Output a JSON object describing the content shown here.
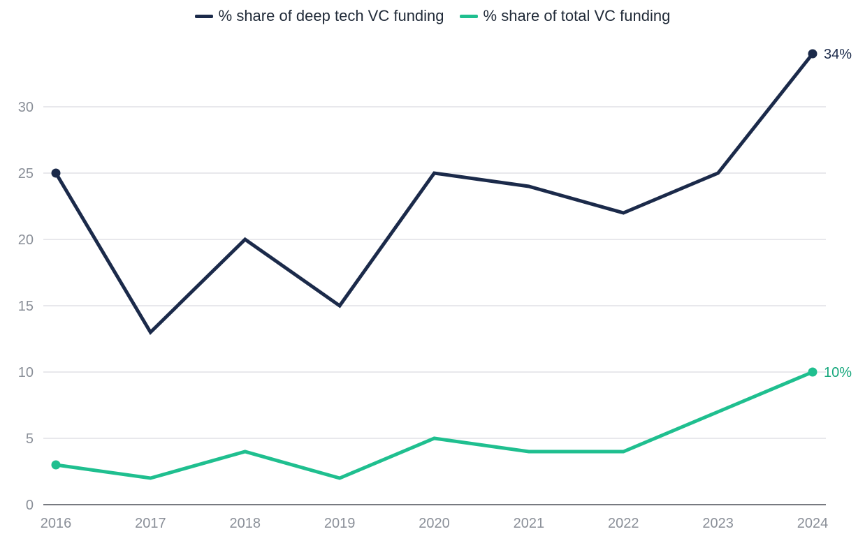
{
  "chart_data": {
    "type": "line",
    "title": "",
    "xlabel": "",
    "ylabel": "",
    "x": [
      "2016",
      "2017",
      "2018",
      "2019",
      "2020",
      "2021",
      "2022",
      "2023",
      "2024"
    ],
    "ylim": [
      0,
      34
    ],
    "yticks": [
      0,
      5,
      10,
      15,
      20,
      25,
      30
    ],
    "grid": true,
    "legend_position": "top-center",
    "series": [
      {
        "name": "% share of deep tech VC funding",
        "color": "#1b2a4a",
        "values": [
          25,
          13,
          20,
          15,
          25,
          24,
          22,
          25,
          34
        ],
        "end_label": "34%",
        "marked_points": [
          0,
          8
        ]
      },
      {
        "name": "% share of total VC funding",
        "color": "#1fbf8f",
        "values": [
          3,
          2,
          4,
          2,
          5,
          4,
          4,
          7,
          10
        ],
        "end_label": "10%",
        "marked_points": [
          0,
          8
        ]
      }
    ]
  }
}
